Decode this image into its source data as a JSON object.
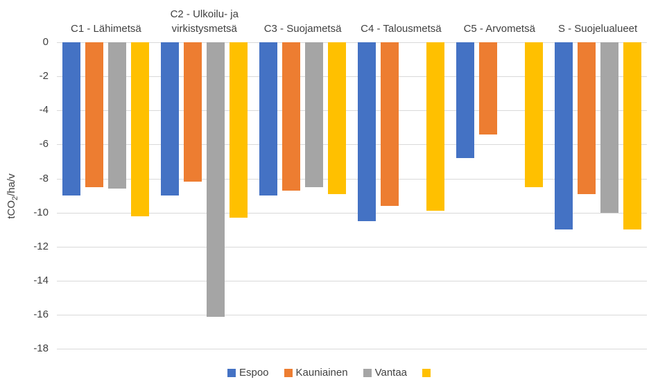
{
  "chart_data": {
    "type": "bar",
    "title": "",
    "categories": [
      "C1 - Lähimetsä",
      "C2 - Ulkoilu- ja virkistysmetsä",
      "C3 - Suojametsä",
      "C4 - Talousmetsä",
      "C5 - Arvometsä",
      "S - Suojelualueet"
    ],
    "series": [
      {
        "name": "Espoo",
        "color": "#4472C4",
        "values": [
          -9.0,
          -9.0,
          -9.0,
          -10.5,
          -6.8,
          -11.0
        ]
      },
      {
        "name": "Kauniainen",
        "color": "#ED7D31",
        "values": [
          -8.5,
          -8.2,
          -8.7,
          -9.6,
          -5.4,
          -8.9
        ]
      },
      {
        "name": "Vantaa",
        "color": "#A5A5A5",
        "values": [
          -8.6,
          -16.1,
          -8.5,
          null,
          null,
          -10.0
        ]
      },
      {
        "name": "",
        "color": "#FFC000",
        "values": [
          -10.2,
          -10.3,
          -8.9,
          -9.9,
          -8.5,
          -11.0
        ]
      }
    ],
    "xlabel": "",
    "ylabel": "tCO2/ha/v",
    "ylabel_parts": {
      "pre": "tCO",
      "sub": "2",
      "post": "/ha/v"
    },
    "ylim": [
      -18,
      0
    ],
    "yticks": [
      0,
      -2,
      -4,
      -6,
      -8,
      -10,
      -12,
      -14,
      -16,
      -18
    ],
    "grid": true,
    "legend_position": "bottom",
    "category_label_position": "top",
    "axis_text_color": "#404040",
    "gridline_color": "#D9D9D9",
    "background_color": "#FFFFFF"
  }
}
